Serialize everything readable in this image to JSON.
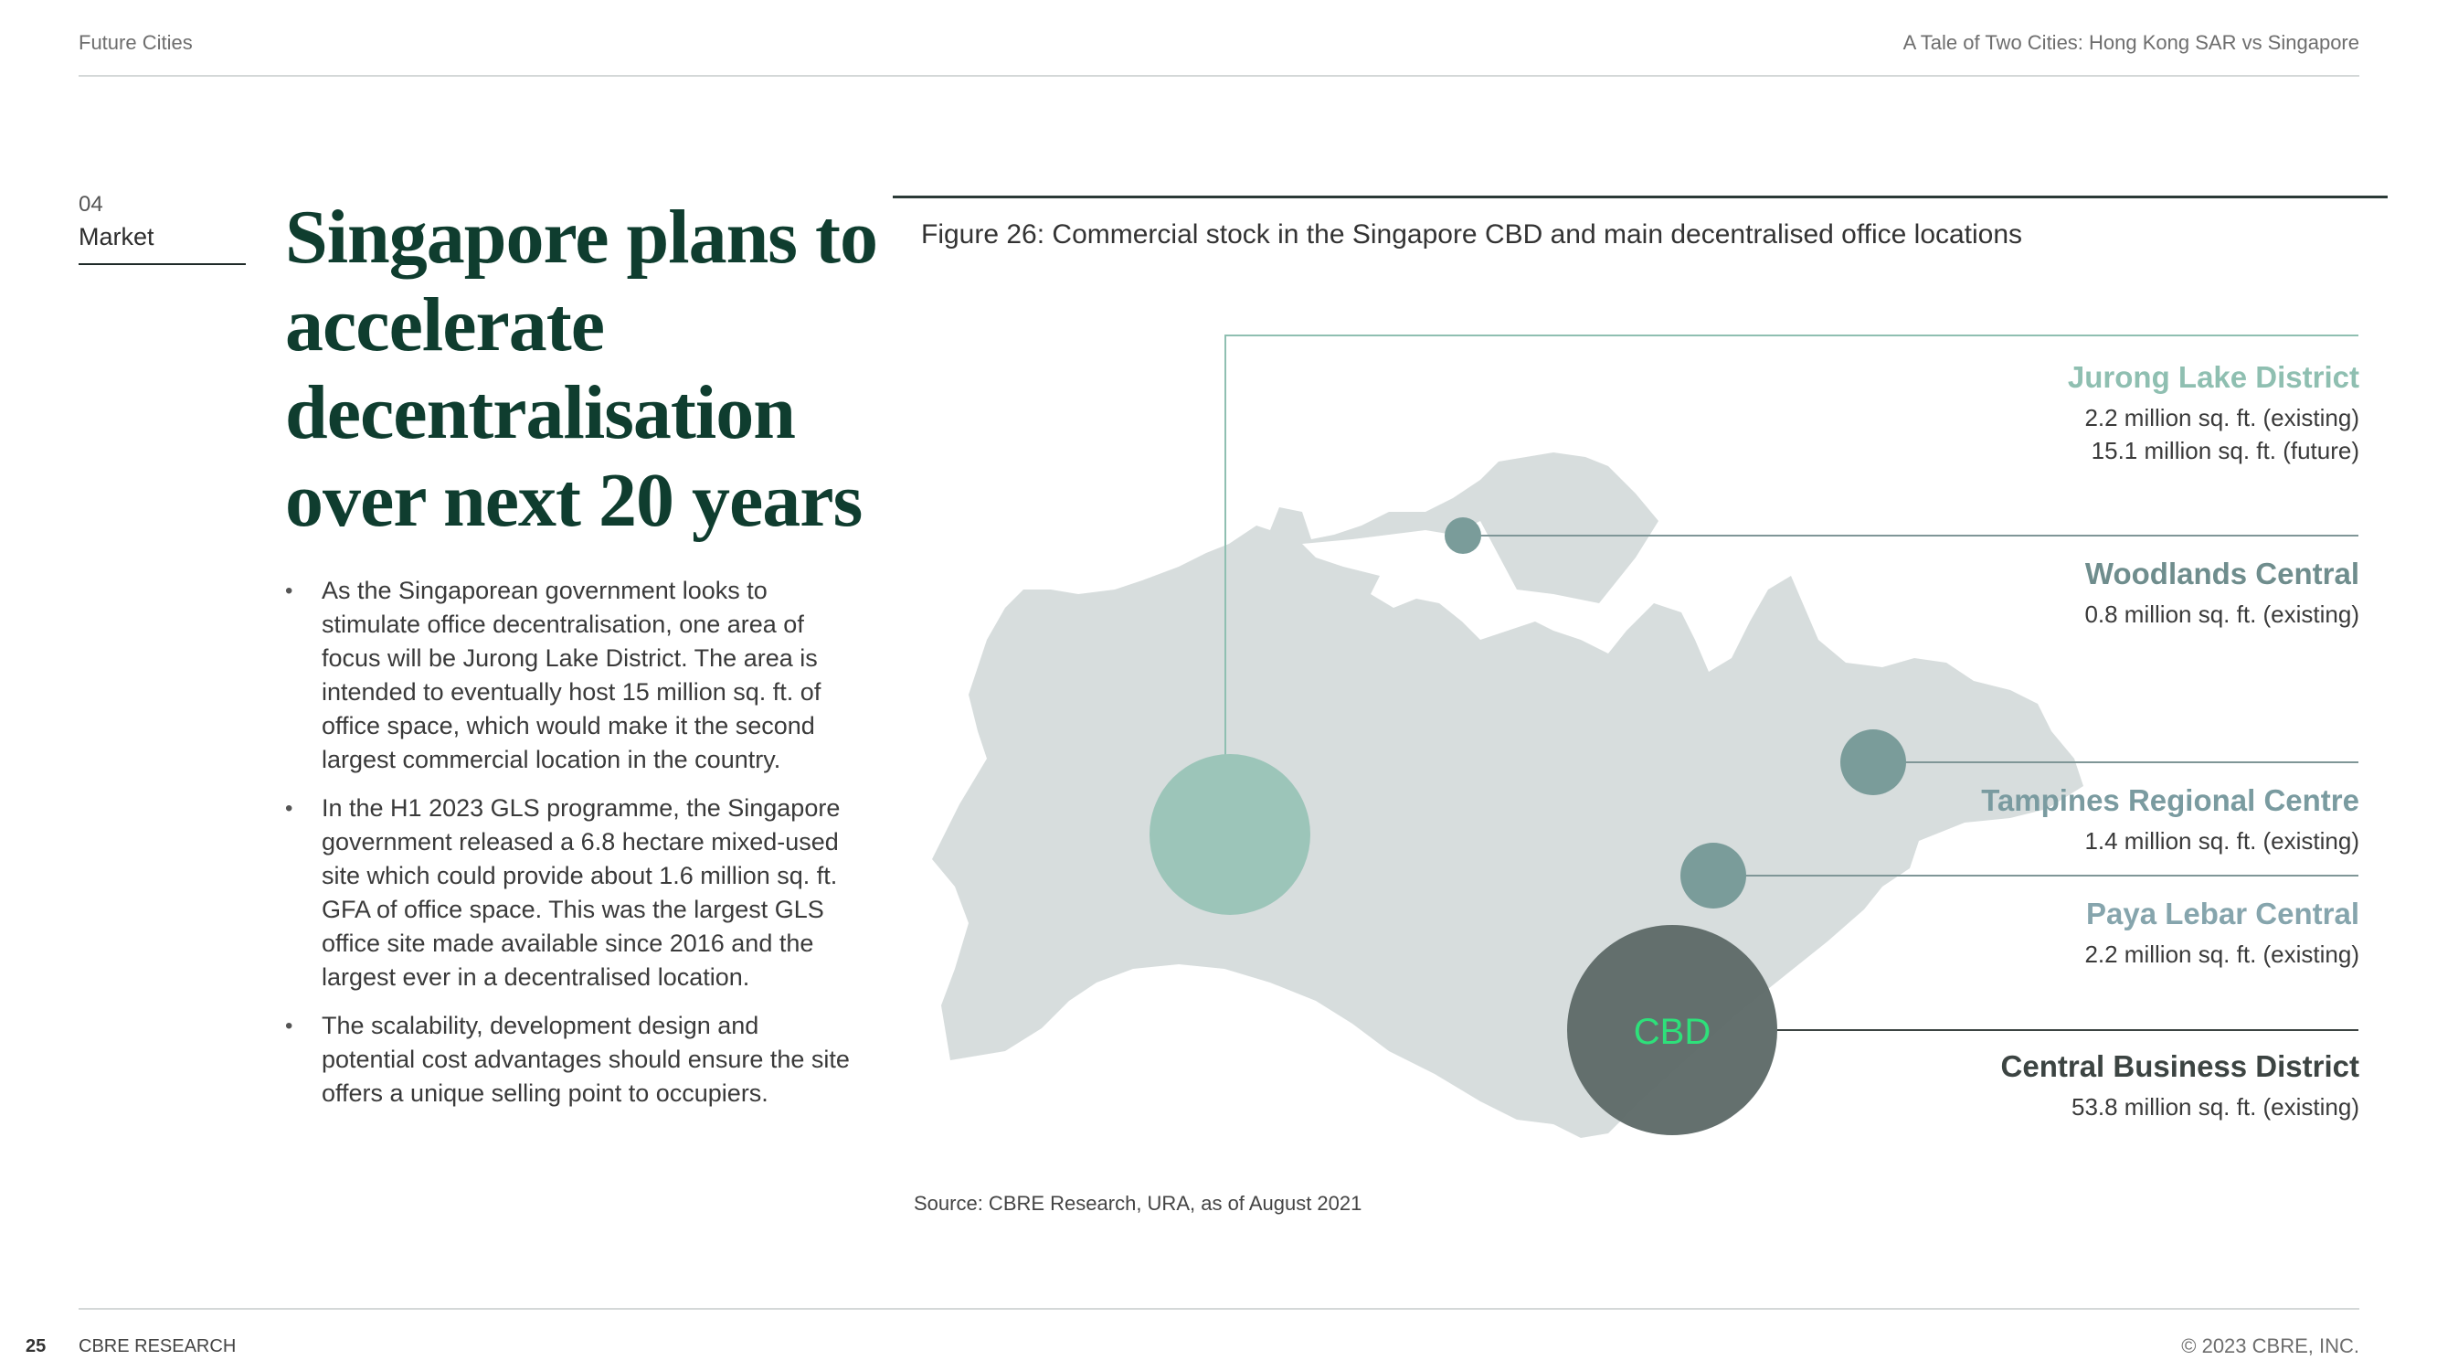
{
  "header": {
    "left": "Future Cities",
    "right": "A Tale of Two Cities: Hong Kong SAR vs Singapore"
  },
  "section": {
    "number": "04",
    "name": "Market"
  },
  "headline": "Singapore plans to accelerate decentralisation over next 20 years",
  "bullets": [
    "As the Singaporean government looks to stimulate office decentralisation, one area of focus will be Jurong Lake District. The area is intended to eventually host 15 million sq. ft. of office space, which would make it the second largest commercial location in the country.",
    "In the H1 2023 GLS programme, the Singapore government released a 6.8 hectare mixed-used site which could provide about 1.6 million sq. ft. GFA of office space. This was the largest GLS office site made available since 2016 and the largest ever in a decentralised location.",
    "The scalability, development design and potential cost advantages should ensure the site offers a unique selling point to occupiers."
  ],
  "figure": {
    "title": "Figure 26: Commercial stock in the Singapore CBD and main decentralised office locations",
    "source": "Source: CBRE Research, URA, as of August 2021",
    "map_label": "CBD",
    "colors": {
      "land": "#d7dddd",
      "jurong": "#9cc5b9",
      "teal": "#7a9c9a",
      "cbd": "#5f6b69",
      "cbd_label": "#2ee07a"
    },
    "locations": [
      {
        "name": "Jurong Lake District",
        "lines": [
          "2.2  million sq. ft. (existing)",
          "15.1 million sq. ft. (future)"
        ],
        "color": "#8fbfb1"
      },
      {
        "name": "Woodlands Central",
        "lines": [
          "0.8 million sq. ft. (existing)"
        ],
        "color": "#6f8d8d"
      },
      {
        "name": "Tampines Regional Centre",
        "lines": [
          "1.4 million sq. ft. (existing)"
        ],
        "color": "#7a9ba0"
      },
      {
        "name": "Paya Lebar Central",
        "lines": [
          "2.2 million sq. ft. (existing)"
        ],
        "color": "#86a5ad"
      },
      {
        "name": "Central Business District",
        "lines": [
          "53.8 million sq. ft. (existing)"
        ],
        "color": "#3c4442"
      }
    ]
  },
  "footer": {
    "page": "25",
    "brand": "CBRE RESEARCH",
    "copyright": "© 2023 CBRE, INC."
  }
}
